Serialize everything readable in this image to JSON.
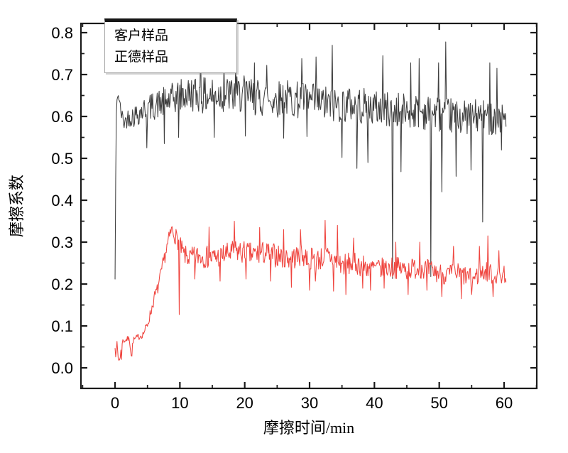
{
  "figure": {
    "background": "#ffffff",
    "axis_color": "#1a1a1a",
    "text_color": "#000000"
  },
  "chart_data": {
    "type": "line",
    "title": "",
    "xlabel": "摩擦时间/min",
    "ylabel": "摩擦系数",
    "grid": false,
    "legend_position": "top-left",
    "xlim": [
      -5.26,
      65.04
    ],
    "ylim": [
      -0.049,
      0.822
    ],
    "x_major_ticks": [
      0,
      10,
      20,
      30,
      40,
      50,
      60
    ],
    "x_major_tick_labels": [
      "0",
      "10",
      "20",
      "30",
      "40",
      "50",
      "60"
    ],
    "x_minor_ticks": [
      -5,
      5,
      15,
      25,
      35,
      45,
      55,
      65
    ],
    "y_major_ticks": [
      0.0,
      0.1,
      0.2,
      0.3,
      0.4,
      0.5,
      0.6,
      0.7,
      0.8
    ],
    "y_major_tick_labels": [
      "0.0",
      "0.1",
      "0.2",
      "0.3",
      "0.4",
      "0.5",
      "0.6",
      "0.7",
      "0.8"
    ],
    "y_minor_ticks": [
      0.05,
      0.15,
      0.25,
      0.35,
      0.45,
      0.55,
      0.65,
      0.75
    ],
    "sample_step_min": 0.1,
    "x_range_data": [
      0,
      60.3
    ],
    "series": [
      {
        "name": "客户样品",
        "color": "#3f3f3f",
        "seed": 42,
        "mean": [
          [
            0,
            0.21
          ],
          [
            0.1,
            0.45
          ],
          [
            0.2,
            0.6
          ],
          [
            0.35,
            0.655
          ],
          [
            0.6,
            0.645
          ],
          [
            0.9,
            0.61
          ],
          [
            1.4,
            0.585
          ],
          [
            2.0,
            0.598
          ],
          [
            3.0,
            0.602
          ],
          [
            4.0,
            0.612
          ],
          [
            5.0,
            0.62
          ],
          [
            6.5,
            0.628
          ],
          [
            8.0,
            0.635
          ],
          [
            10,
            0.648
          ],
          [
            12,
            0.655
          ],
          [
            14,
            0.648
          ],
          [
            16,
            0.654
          ],
          [
            18,
            0.65
          ],
          [
            20,
            0.653
          ],
          [
            22,
            0.645
          ],
          [
            24,
            0.64
          ],
          [
            26,
            0.645
          ],
          [
            28,
            0.64
          ],
          [
            30,
            0.636
          ],
          [
            32,
            0.63
          ],
          [
            34,
            0.627
          ],
          [
            36,
            0.63
          ],
          [
            38,
            0.625
          ],
          [
            40,
            0.62
          ],
          [
            42,
            0.617
          ],
          [
            44,
            0.612
          ],
          [
            46,
            0.615
          ],
          [
            48,
            0.61
          ],
          [
            50,
            0.606
          ],
          [
            52,
            0.601
          ],
          [
            54,
            0.598
          ],
          [
            56,
            0.6
          ],
          [
            58,
            0.597
          ],
          [
            60.3,
            0.6
          ]
        ],
        "noise_amp": [
          [
            0,
            0.006
          ],
          [
            0.5,
            0.012
          ],
          [
            1.5,
            0.02
          ],
          [
            3,
            0.028
          ],
          [
            6,
            0.034
          ],
          [
            10,
            0.042
          ],
          [
            15,
            0.045
          ],
          [
            30,
            0.045
          ],
          [
            45,
            0.043
          ],
          [
            60.3,
            0.04
          ]
        ],
        "spikes": [
          [
            4.9,
            0.525
          ],
          [
            7.6,
            0.535
          ],
          [
            9.8,
            0.55
          ],
          [
            13.2,
            0.775
          ],
          [
            15.3,
            0.55
          ],
          [
            16.8,
            0.74
          ],
          [
            18.6,
            0.735
          ],
          [
            20.1,
            0.553
          ],
          [
            21.5,
            0.728
          ],
          [
            23.4,
            0.722
          ],
          [
            26.0,
            0.548
          ],
          [
            28.8,
            0.738
          ],
          [
            29.6,
            0.552
          ],
          [
            31.0,
            0.742
          ],
          [
            33.5,
            0.77
          ],
          [
            35.0,
            0.502
          ],
          [
            37.3,
            0.476
          ],
          [
            39.0,
            0.49
          ],
          [
            41.3,
            0.745
          ],
          [
            42.8,
            0.213
          ],
          [
            44.1,
            0.468
          ],
          [
            45.6,
            0.728
          ],
          [
            46.9,
            0.738
          ],
          [
            48.7,
            0.218
          ],
          [
            49.9,
            0.728
          ],
          [
            50.4,
            0.42
          ],
          [
            51.0,
            0.778
          ],
          [
            52.6,
            0.457
          ],
          [
            54.9,
            0.472
          ],
          [
            56.7,
            0.348
          ],
          [
            57.8,
            0.728
          ],
          [
            58.9,
            0.715
          ],
          [
            59.6,
            0.52
          ]
        ]
      },
      {
        "name": "正德样品",
        "color": "#ef453f",
        "seed": 7,
        "mean": [
          [
            0,
            0.055
          ],
          [
            0.15,
            0.022
          ],
          [
            0.3,
            0.06
          ],
          [
            0.5,
            0.022
          ],
          [
            0.8,
            0.024
          ],
          [
            1.05,
            0.062
          ],
          [
            1.5,
            0.066
          ],
          [
            2.2,
            0.07
          ],
          [
            2.5,
            0.032
          ],
          [
            2.8,
            0.066
          ],
          [
            3.5,
            0.073
          ],
          [
            4.3,
            0.08
          ],
          [
            5.0,
            0.103
          ],
          [
            5.6,
            0.138
          ],
          [
            6.1,
            0.17
          ],
          [
            6.6,
            0.19
          ],
          [
            7.0,
            0.218
          ],
          [
            7.6,
            0.262
          ],
          [
            8.2,
            0.3
          ],
          [
            8.7,
            0.33
          ],
          [
            9.2,
            0.318
          ],
          [
            9.8,
            0.3
          ],
          [
            10.6,
            0.27
          ],
          [
            11.5,
            0.262
          ],
          [
            13,
            0.268
          ],
          [
            15,
            0.262
          ],
          [
            17,
            0.27
          ],
          [
            19,
            0.278
          ],
          [
            21,
            0.27
          ],
          [
            23,
            0.274
          ],
          [
            25,
            0.268
          ],
          [
            27,
            0.262
          ],
          [
            29,
            0.268
          ],
          [
            31,
            0.258
          ],
          [
            33,
            0.266
          ],
          [
            35,
            0.246
          ],
          [
            37,
            0.25
          ],
          [
            39,
            0.24
          ],
          [
            41,
            0.236
          ],
          [
            43,
            0.24
          ],
          [
            45,
            0.235
          ],
          [
            47,
            0.24
          ],
          [
            49,
            0.23
          ],
          [
            51,
            0.222
          ],
          [
            53,
            0.226
          ],
          [
            55,
            0.212
          ],
          [
            57,
            0.23
          ],
          [
            59,
            0.22
          ],
          [
            60.3,
            0.225
          ]
        ],
        "noise_amp": [
          [
            0,
            0.008
          ],
          [
            2,
            0.007
          ],
          [
            4,
            0.008
          ],
          [
            6,
            0.014
          ],
          [
            8,
            0.018
          ],
          [
            10,
            0.022
          ],
          [
            13,
            0.027
          ],
          [
            20,
            0.029
          ],
          [
            30,
            0.028
          ],
          [
            45,
            0.026
          ],
          [
            60.3,
            0.024
          ]
        ],
        "spikes": [
          [
            0.6,
            0.018
          ],
          [
            1.0,
            0.02
          ],
          [
            2.65,
            0.028
          ],
          [
            9.95,
            0.127
          ],
          [
            12.3,
            0.212
          ],
          [
            14.5,
            0.336
          ],
          [
            16.2,
            0.207
          ],
          [
            18.4,
            0.35
          ],
          [
            20.2,
            0.212
          ],
          [
            22.3,
            0.335
          ],
          [
            24.0,
            0.207
          ],
          [
            26.0,
            0.33
          ],
          [
            27.2,
            0.192
          ],
          [
            28.6,
            0.33
          ],
          [
            30.0,
            0.185
          ],
          [
            30.9,
            0.207
          ],
          [
            32.4,
            0.352
          ],
          [
            33.7,
            0.183
          ],
          [
            34.3,
            0.34
          ],
          [
            35.6,
            0.175
          ],
          [
            36.8,
            0.31
          ],
          [
            38.2,
            0.19
          ],
          [
            39.4,
            0.185
          ],
          [
            41.5,
            0.19
          ],
          [
            43.3,
            0.3
          ],
          [
            45.2,
            0.175
          ],
          [
            47.0,
            0.3
          ],
          [
            48.1,
            0.185
          ],
          [
            50.4,
            0.17
          ],
          [
            52.2,
            0.29
          ],
          [
            53.4,
            0.165
          ],
          [
            55.0,
            0.175
          ],
          [
            56.2,
            0.29
          ],
          [
            57.5,
            0.315
          ],
          [
            58.3,
            0.17
          ],
          [
            59.2,
            0.28
          ]
        ]
      }
    ]
  }
}
